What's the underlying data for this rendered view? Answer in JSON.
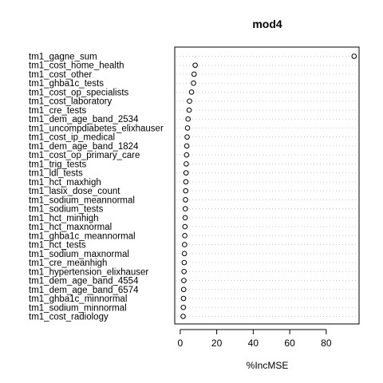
{
  "chart_data": {
    "type": "scatter",
    "title": "mod4",
    "xlabel": "%IncMSE",
    "ylabel": "",
    "xlim": [
      -3,
      98
    ],
    "xticks": [
      0,
      20,
      40,
      60,
      80
    ],
    "xtick_labels": [
      "0",
      "20",
      "40",
      "60",
      "80"
    ],
    "grid": "dotted horizontal guide lines",
    "categories": [
      "tm1_gagne_sum",
      "tm1_cost_home_health",
      "tm1_cost_other",
      "tm1_ghba1c_tests",
      "tm1_cost_op_specialists",
      "tm1_cost_laboratory",
      "tm1_cre_tests",
      "tm1_dem_age_band_2534",
      "tm1_uncompdiabetes_elixhauser",
      "tm1_cost_ip_medical",
      "tm1_dem_age_band_1824",
      "tm1_cost_op_primary_care",
      "tm1_trig_tests",
      "tm1_ldl_tests",
      "tm1_hct_maxhigh",
      "tm1_lasix_dose_count",
      "tm1_sodium_meannormal",
      "tm1_sodium_tests",
      "tm1_hct_minhigh",
      "tm1_hct_maxnormal",
      "tm1_ghba1c_meannormal",
      "tm1_hct_tests",
      "tm1_sodium_maxnormal",
      "tm1_cre_meanhigh",
      "tm1_hypertension_elixhauser",
      "tm1_dem_age_band_4554",
      "tm1_dem_age_band_6574",
      "tm1_ghba1c_minnormal",
      "tm1_sodium_minnormal",
      "tm1_cost_radiology"
    ],
    "values": [
      95.3,
      8.2,
      7.6,
      7.3,
      6.2,
      5.1,
      4.9,
      4.3,
      4.0,
      3.8,
      3.6,
      3.5,
      3.3,
      3.2,
      3.1,
      3.0,
      2.9,
      2.8,
      2.7,
      2.6,
      2.5,
      2.4,
      2.3,
      2.2,
      2.1,
      2.0,
      1.9,
      1.8,
      1.7,
      1.6
    ]
  }
}
